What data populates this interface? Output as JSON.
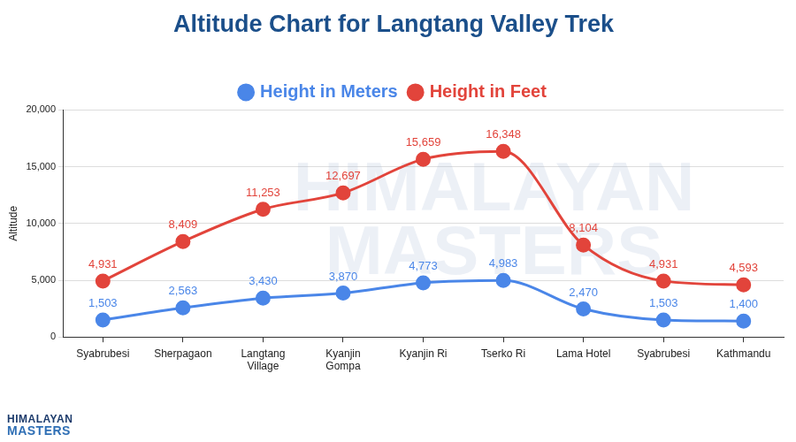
{
  "chart_data": {
    "type": "line",
    "title": "Altitude Chart for Langtang Valley Trek",
    "y_label": "Altitude",
    "categories": [
      "Syabrubesi",
      "Sherpagaon",
      "Langtang Village",
      "Kyanjin Gompa",
      "Kyanjin Ri",
      "Tserko Ri",
      "Lama Hotel",
      "Syabrubesi",
      "Kathmandu"
    ],
    "series": [
      {
        "name": "Height in Meters",
        "color": "#4a86e8",
        "marker": "circle",
        "line_style": "smooth",
        "values": [
          1503,
          2563,
          3430,
          3870,
          4773,
          4983,
          2470,
          1503,
          1400
        ],
        "value_labels": [
          "1,503",
          "2,563",
          "3,430",
          "3,870",
          "4,773",
          "4,983",
          "2,470",
          "1,503",
          "1,400"
        ]
      },
      {
        "name": "Height in Feet",
        "color": "#e2443b",
        "marker": "circle",
        "line_style": "smooth",
        "values": [
          4931,
          8409,
          11253,
          12697,
          15659,
          16348,
          8104,
          4931,
          4593
        ],
        "value_labels": [
          "4,931",
          "8,409",
          "11,253",
          "12,697",
          "15,659",
          "16,348",
          "8,104",
          "4,931",
          "4,593"
        ]
      }
    ],
    "ylim": [
      0,
      20000
    ],
    "yticks": [
      0,
      {
        "value": 5000,
        "label": "5,000"
      },
      {
        "value": 10000,
        "label": "10,000"
      },
      {
        "value": 15000,
        "label": "15,000"
      },
      {
        "value": 20000,
        "label": "20,000"
      }
    ],
    "grid": true,
    "legend": "top",
    "data_labels": true,
    "watermark": [
      "HIMALAYAN",
      "MASTERS"
    ],
    "logo": [
      "HIMALAYAN",
      "MASTERS"
    ]
  }
}
